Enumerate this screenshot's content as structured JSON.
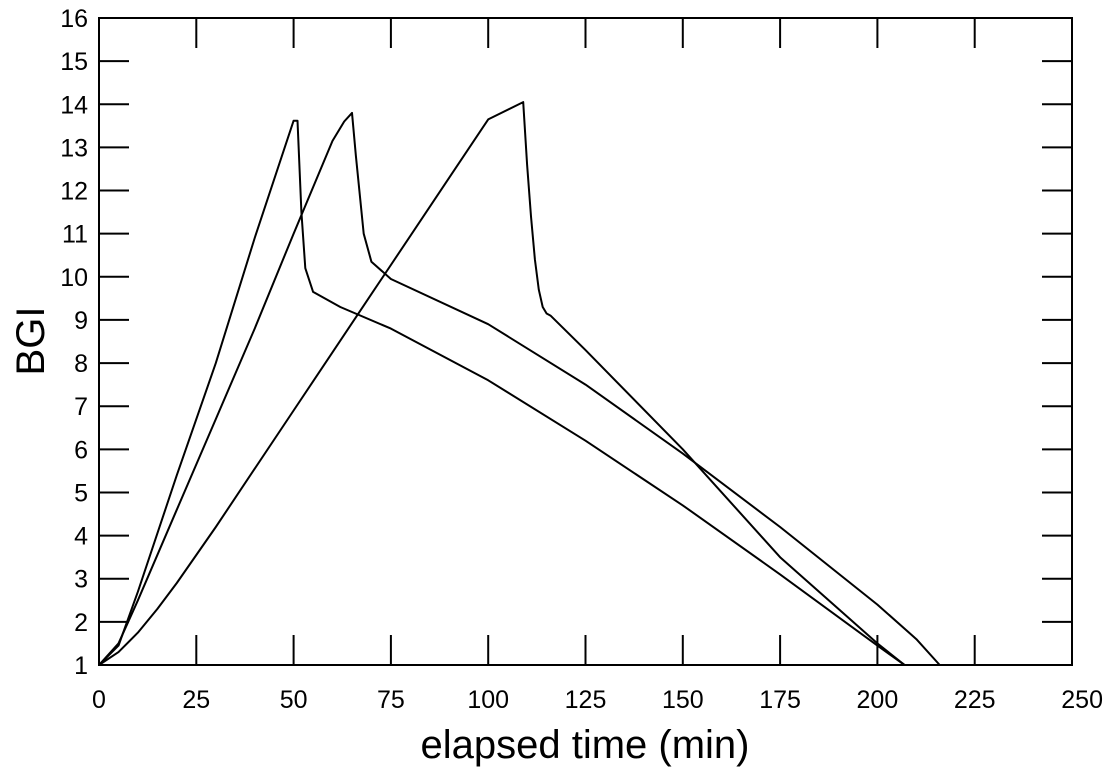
{
  "chart_data": {
    "type": "line",
    "title": "",
    "xlabel": "elapsed time (min)",
    "ylabel": "BGI",
    "xlim": [
      0,
      250
    ],
    "ylim": [
      1,
      16
    ],
    "xticks": [
      0,
      25,
      50,
      75,
      100,
      125,
      150,
      175,
      200,
      225,
      250
    ],
    "yticks": [
      1,
      2,
      3,
      4,
      5,
      6,
      7,
      8,
      9,
      10,
      11,
      12,
      13,
      14,
      15,
      16
    ],
    "grid": false,
    "legend": "none",
    "line_color": "#000000",
    "series": [
      {
        "x": [
          0,
          5,
          10,
          20,
          30,
          40,
          50,
          51,
          52,
          53,
          55,
          62,
          75,
          100,
          125,
          150,
          175,
          200,
          207
        ],
        "y": [
          1,
          1.45,
          2.7,
          5.4,
          8.0,
          10.9,
          13.62,
          13.62,
          11.5,
          10.2,
          9.65,
          9.3,
          8.8,
          7.6,
          6.2,
          4.7,
          3.1,
          1.45,
          1
        ]
      },
      {
        "x": [
          0,
          5,
          10,
          20,
          30,
          40,
          50,
          60,
          63,
          65,
          66,
          68,
          70,
          75,
          100,
          125,
          150,
          175,
          200,
          210,
          216
        ],
        "y": [
          1,
          1.5,
          2.5,
          4.6,
          6.7,
          8.8,
          11.0,
          13.15,
          13.6,
          13.8,
          12.8,
          11.0,
          10.35,
          9.95,
          8.9,
          7.5,
          5.9,
          4.2,
          2.4,
          1.6,
          1
        ]
      },
      {
        "x": [
          0,
          5,
          10,
          15,
          20,
          25,
          30,
          40,
          50,
          60,
          70,
          80,
          90,
          100,
          109,
          110,
          111,
          112,
          113,
          114,
          115,
          116,
          125,
          150,
          175,
          200,
          207
        ],
        "y": [
          1,
          1.3,
          1.75,
          2.3,
          2.9,
          3.55,
          4.2,
          5.55,
          6.9,
          8.25,
          9.6,
          10.95,
          12.3,
          13.65,
          14.05,
          12.6,
          11.4,
          10.4,
          9.7,
          9.3,
          9.15,
          9.1,
          8.3,
          6.0,
          3.5,
          1.5,
          1
        ]
      }
    ]
  }
}
